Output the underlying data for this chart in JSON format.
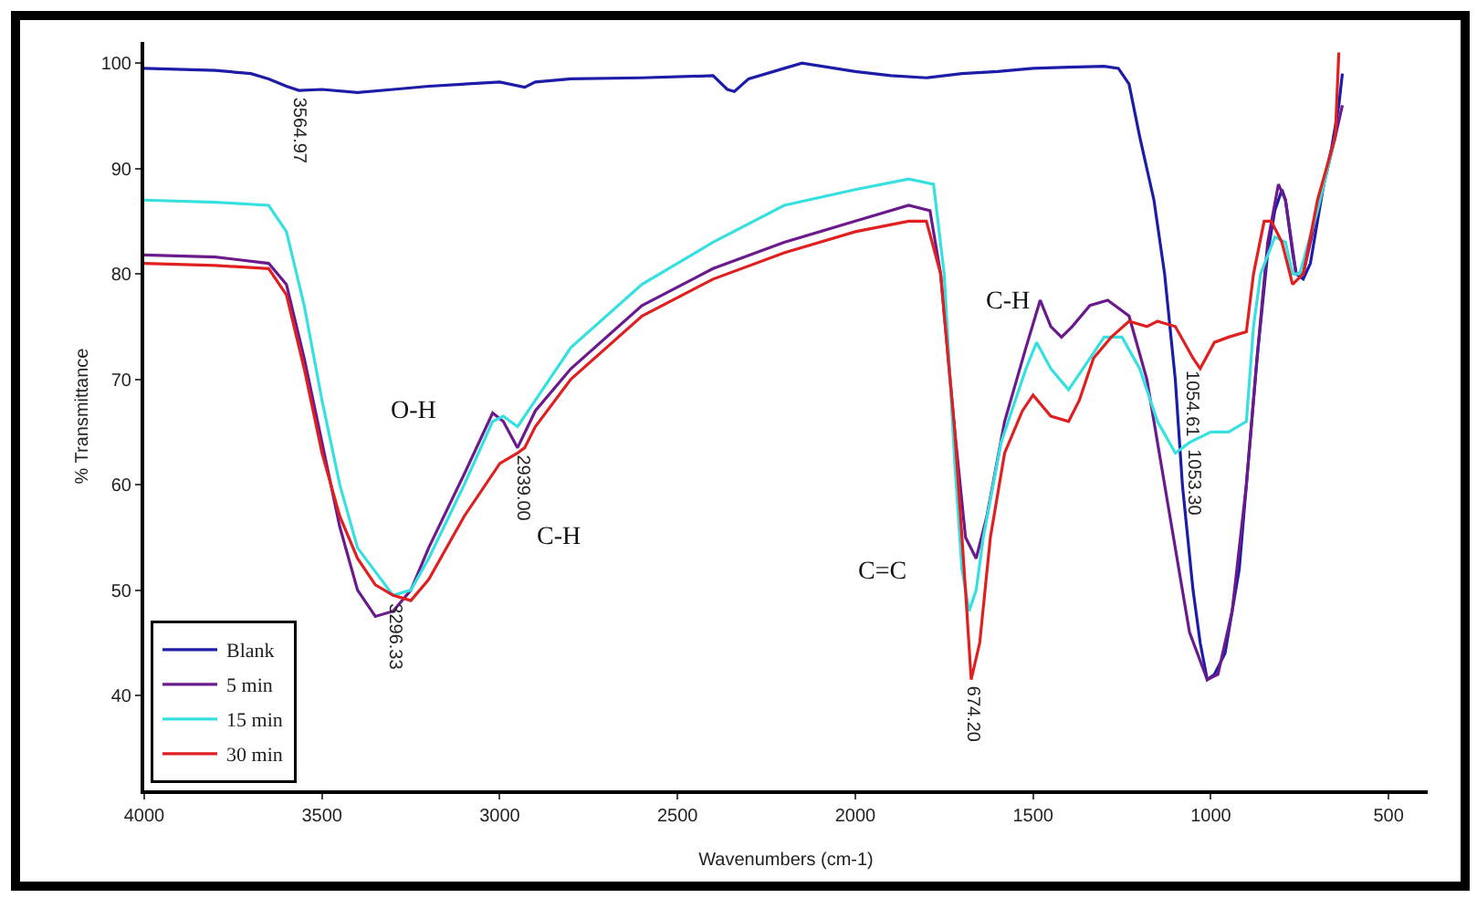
{
  "chart_data": {
    "type": "line",
    "xlabel": "Wavenumbers (cm-1)",
    "ylabel": "% Transmittance",
    "xlim": [
      4000,
      390
    ],
    "ylim": [
      31,
      102
    ],
    "xticks": [
      4000,
      3500,
      3000,
      2500,
      2000,
      1500,
      1000,
      500
    ],
    "yticks": [
      40,
      50,
      60,
      70,
      80,
      90,
      100
    ],
    "legend": "bottom left",
    "marker": "none",
    "line_style": "solid",
    "series": [
      {
        "name": "Blank",
        "color": "#1c1ca8",
        "x": [
          4000,
          3800,
          3700,
          3650,
          3600,
          3564.97,
          3500,
          3400,
          3300,
          3200,
          3000,
          2930,
          2900,
          2800,
          2600,
          2400,
          2360,
          2340,
          2300,
          2200,
          2150,
          2000,
          1900,
          1800,
          1700,
          1600,
          1500,
          1400,
          1300,
          1260,
          1230,
          1200,
          1160,
          1130,
          1100,
          1080,
          1050,
          1030,
          1010,
          990,
          960,
          920,
          900,
          870,
          840,
          820,
          800,
          790,
          770,
          760,
          740,
          720,
          700,
          680,
          660,
          650,
          640,
          630
        ],
        "values": [
          99.5,
          99.3,
          99,
          98.5,
          97.8,
          97.4,
          97.5,
          97.2,
          97.5,
          97.8,
          98.2,
          97.7,
          98.2,
          98.5,
          98.6,
          98.8,
          97.5,
          97.3,
          98.5,
          99.5,
          100,
          99.2,
          98.8,
          98.6,
          99,
          99.2,
          99.5,
          99.6,
          99.7,
          99.5,
          98,
          93,
          87,
          80,
          70,
          60,
          50,
          45,
          41.5,
          42,
          44,
          52,
          60,
          72,
          82,
          86,
          88,
          87,
          82,
          80,
          79.5,
          81,
          85,
          89,
          92,
          94,
          96,
          99
        ]
      },
      {
        "name": "5 min",
        "color": "#6a1a8c",
        "x": [
          4000,
          3800,
          3650,
          3600,
          3550,
          3500,
          3450,
          3400,
          3350,
          3300,
          3250,
          3200,
          3100,
          3020,
          2990,
          2950,
          2900,
          2800,
          2600,
          2400,
          2200,
          2000,
          1850,
          1790,
          1760,
          1720,
          1690,
          1660,
          1630,
          1580,
          1520,
          1480,
          1450,
          1420,
          1390,
          1340,
          1290,
          1230,
          1180,
          1120,
          1060,
          1010,
          980,
          940,
          900,
          870,
          840,
          810,
          790,
          760,
          740,
          700,
          650,
          630
        ],
        "values": [
          81.8,
          81.6,
          81,
          79,
          72,
          64,
          56,
          50,
          47.5,
          48,
          50,
          54,
          61,
          66.8,
          66,
          63.5,
          67,
          71,
          77,
          80.5,
          83,
          85,
          86.5,
          86,
          80,
          65,
          55,
          53,
          57,
          66,
          73,
          77.5,
          75,
          74,
          75,
          77,
          77.5,
          76,
          70,
          58,
          46,
          41.5,
          42,
          48,
          60,
          72,
          83,
          88.5,
          87,
          80,
          80,
          86,
          93,
          96
        ]
      },
      {
        "name": "15 min",
        "color": "#36e0e0",
        "x": [
          4000,
          3800,
          3650,
          3600,
          3550,
          3500,
          3450,
          3400,
          3300,
          3250,
          3200,
          3100,
          3020,
          2990,
          2950,
          2900,
          2800,
          2600,
          2400,
          2200,
          2000,
          1850,
          1780,
          1750,
          1720,
          1700,
          1680,
          1660,
          1640,
          1590,
          1520,
          1490,
          1450,
          1400,
          1360,
          1300,
          1250,
          1200,
          1150,
          1100,
          1060,
          1000,
          950,
          900,
          880,
          860,
          820,
          790,
          770,
          750,
          700,
          650
        ],
        "values": [
          87,
          86.8,
          86.5,
          84,
          77,
          68,
          60,
          54,
          49.5,
          50,
          53,
          60,
          66,
          66.5,
          65.5,
          68,
          73,
          79,
          83,
          86.5,
          88,
          89,
          88.5,
          80,
          62,
          52,
          48,
          50,
          55,
          64,
          71,
          73.5,
          71,
          69,
          71,
          74,
          74,
          71,
          66,
          63,
          64,
          65,
          65,
          66,
          75,
          80,
          83.5,
          83,
          80,
          80,
          86,
          93
        ]
      },
      {
        "name": "30 min",
        "color": "#e02020",
        "x": [
          4000,
          3800,
          3650,
          3600,
          3550,
          3500,
          3450,
          3400,
          3350,
          3300,
          3250,
          3200,
          3100,
          3000,
          2950,
          2930,
          2900,
          2800,
          2600,
          2400,
          2200,
          2000,
          1850,
          1800,
          1760,
          1720,
          1690,
          1674,
          1650,
          1620,
          1580,
          1530,
          1500,
          1450,
          1400,
          1370,
          1330,
          1280,
          1230,
          1180,
          1150,
          1100,
          1050,
          1030,
          990,
          950,
          900,
          880,
          850,
          830,
          800,
          770,
          740,
          700,
          650,
          640
        ],
        "values": [
          81,
          80.8,
          80.5,
          78,
          71,
          63,
          57,
          53,
          50.5,
          49.5,
          49,
          51,
          57,
          62,
          63,
          63.5,
          65.5,
          70,
          76,
          79.5,
          82,
          84,
          85,
          85,
          80,
          65,
          50,
          41.5,
          45,
          55,
          63,
          67,
          68.5,
          66.5,
          66,
          68,
          72,
          74,
          75.5,
          75,
          75.5,
          75,
          72,
          71,
          73.5,
          74,
          74.5,
          80,
          85,
          85,
          83,
          79,
          80,
          87,
          93,
          101
        ]
      }
    ],
    "annotations": [
      {
        "text": "3564.97",
        "x": 3564.97,
        "y": 97.4
      },
      {
        "text": "3296.33",
        "x": 3296.33,
        "y": 49.5
      },
      {
        "text": "2939.00",
        "x": 2939,
        "y": 63.5
      },
      {
        "text": "674.20",
        "x": 1674,
        "y": 41.5
      },
      {
        "text": "1054.61",
        "x": 1054.61,
        "y": 71.5
      },
      {
        "text": "1053.30",
        "x": 1053.3,
        "y": 64
      },
      "O-H",
      "C-H",
      "C=C",
      "C-H"
    ]
  }
}
